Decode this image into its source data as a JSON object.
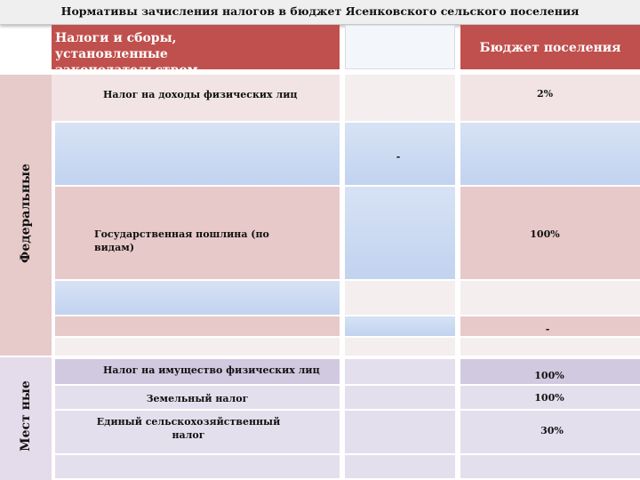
{
  "title": "Нормативы зачисления налогов в бюджет Ясенковского сельского поселения",
  "header": {
    "taxes_label": "Налоги и сборы,\n     установленные\n     законодательством",
    "budget_label": "Бюджет поселения"
  },
  "sections": {
    "federal": "Федеральные",
    "local": "Мест ные"
  },
  "federal_rows": [
    {
      "name": "Налог на доходы физических лиц",
      "value": "2%"
    },
    {
      "name": "",
      "value": "-"
    },
    {
      "name": "Государственная пошлина (по видам)",
      "value": "100%"
    },
    {
      "name": "",
      "value": "-"
    }
  ],
  "local_rows": [
    {
      "name": "Налог на имущество физических лиц",
      "value": "100%"
    },
    {
      "name": "Земельный налог",
      "value": "100%"
    },
    {
      "name": "Единый сельскохозяйственный налог",
      "value": "30%"
    }
  ]
}
